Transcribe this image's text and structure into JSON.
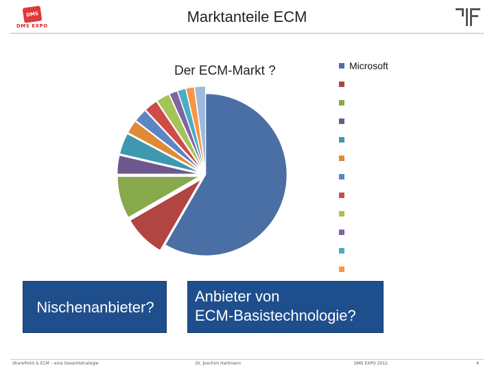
{
  "header": {
    "title": "Marktanteile ECM",
    "logo_left_badge": "DMS",
    "logo_left_text": "DMS EXPO",
    "logo_right": "fraunhofer-style-logo-icon"
  },
  "chart_data": {
    "type": "pie",
    "title": "Der ECM-Markt ?",
    "slices": [
      {
        "name": "Microsoft",
        "value": 56,
        "color": "#4a6fa5",
        "exploded": false
      },
      {
        "name": "",
        "value": 8,
        "color": "#b04541",
        "exploded": true
      },
      {
        "name": "",
        "value": 8,
        "color": "#87a84b",
        "exploded": true
      },
      {
        "name": "",
        "value": 3.5,
        "color": "#6e578f",
        "exploded": true
      },
      {
        "name": "",
        "value": 4,
        "color": "#3f98b0",
        "exploded": true
      },
      {
        "name": "",
        "value": 2.5,
        "color": "#e08a35",
        "exploded": true
      },
      {
        "name": "",
        "value": 2.5,
        "color": "#5d85c4",
        "exploded": true
      },
      {
        "name": "",
        "value": 2.5,
        "color": "#cf4b47",
        "exploded": true
      },
      {
        "name": "",
        "value": 2.5,
        "color": "#a4c45a",
        "exploded": true
      },
      {
        "name": "",
        "value": 1.5,
        "color": "#8064a2",
        "exploded": true
      },
      {
        "name": "",
        "value": 1.5,
        "color": "#4bacc6",
        "exploded": true
      },
      {
        "name": "",
        "value": 1.5,
        "color": "#f79646",
        "exploded": true
      },
      {
        "name": "",
        "value": 2,
        "color": "#9db9dc",
        "exploded": true
      }
    ],
    "legend_placement": "right"
  },
  "callouts": {
    "left": "Nischenanbieter?",
    "right_line1": "Anbieter von",
    "right_line2": "ECM-Basistechnologie?"
  },
  "footer": {
    "left": "SharePoint & ECM – eine Gesamtstrategie",
    "center": "Dr. Joachim Hartmann",
    "right": "DMS EXPO 2012",
    "page": "4"
  }
}
